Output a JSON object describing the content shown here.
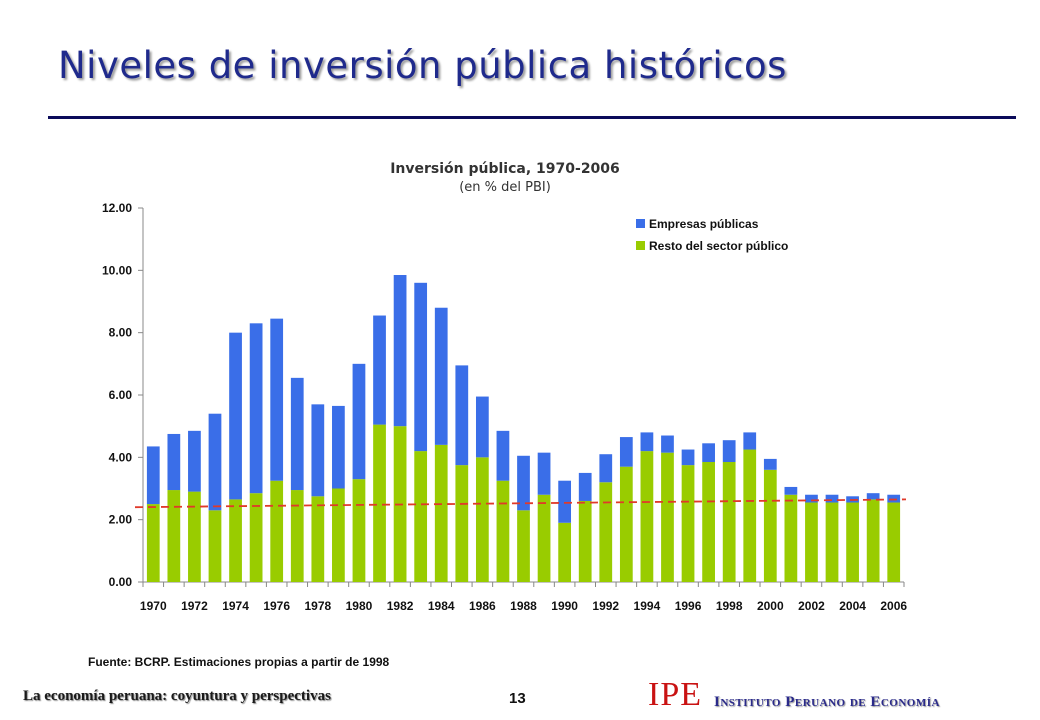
{
  "slide": {
    "title": "Niveles de inversión pública históricos",
    "source": "Fuente: BCRP. Estimaciones propias a partir de 1998",
    "footer_text": "La economía peruana: coyuntura y perspectivas",
    "page_number": "13",
    "logo_letters": "IPE",
    "institute_name": "Instituto Peruano de Economía"
  },
  "colors": {
    "title": "#1f2a8c",
    "empresas": "#3a6ee8",
    "resto": "#99cc00",
    "trend": "#e03a2a",
    "logo": "#c91212"
  },
  "chart_data": {
    "type": "bar",
    "stacked": true,
    "title": "Inversión pública, 1970-2006",
    "subtitle": "(en % del PBI)",
    "xlabel": "",
    "ylabel": "",
    "ylim": [
      0,
      12
    ],
    "yticks": [
      "0.00",
      "2.00",
      "4.00",
      "6.00",
      "8.00",
      "10.00",
      "12.00"
    ],
    "xtick_labels": [
      "1970",
      "1972",
      "1974",
      "1976",
      "1978",
      "1980",
      "1982",
      "1984",
      "1986",
      "1988",
      "1990",
      "1992",
      "1994",
      "1996",
      "1998",
      "2000",
      "2002",
      "2004",
      "2006"
    ],
    "categories": [
      "1970",
      "1971",
      "1972",
      "1973",
      "1974",
      "1975",
      "1976",
      "1977",
      "1978",
      "1979",
      "1980",
      "1981",
      "1982",
      "1983",
      "1984",
      "1985",
      "1986",
      "1987",
      "1988",
      "1989",
      "1990",
      "1991",
      "1992",
      "1993",
      "1994",
      "1995",
      "1996",
      "1997",
      "1998",
      "1999",
      "2000",
      "2001",
      "2002",
      "2003",
      "2004",
      "2005",
      "2006"
    ],
    "series": [
      {
        "name": "Resto del sector público",
        "values": [
          2.5,
          2.95,
          2.9,
          2.3,
          2.65,
          2.85,
          3.25,
          2.95,
          2.75,
          3.0,
          3.3,
          5.05,
          5.0,
          4.2,
          4.4,
          3.75,
          4.0,
          3.25,
          2.3,
          2.8,
          1.9,
          2.6,
          3.2,
          3.7,
          4.2,
          4.15,
          3.75,
          3.85,
          3.85,
          4.25,
          3.6,
          2.8,
          2.55,
          2.55,
          2.55,
          2.65,
          2.55
        ]
      },
      {
        "name": "Empresas públicas",
        "values": [
          1.85,
          1.8,
          1.95,
          3.1,
          5.35,
          5.45,
          5.2,
          3.6,
          2.95,
          2.65,
          3.7,
          3.5,
          4.85,
          5.4,
          4.4,
          3.2,
          1.95,
          1.6,
          1.75,
          1.35,
          1.35,
          0.9,
          0.9,
          0.95,
          0.6,
          0.55,
          0.5,
          0.6,
          0.7,
          0.55,
          0.35,
          0.25,
          0.25,
          0.25,
          0.2,
          0.2,
          0.25
        ]
      }
    ],
    "trend_line": {
      "style": "dashed",
      "start": 2.4,
      "end": 2.65
    },
    "legend": {
      "position": "top-right",
      "order": [
        "Empresas públicas",
        "Resto del sector público"
      ]
    },
    "grid": false
  }
}
